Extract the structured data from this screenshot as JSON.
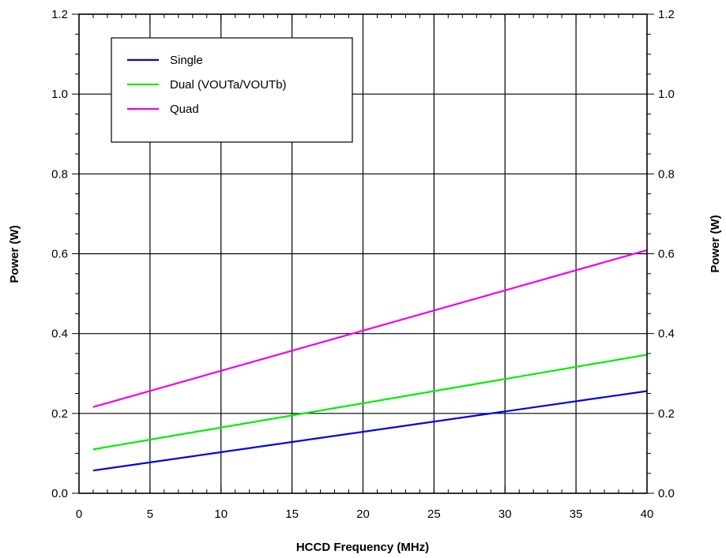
{
  "chart_data": {
    "type": "line",
    "title": "",
    "xlabel": "HCCD Frequency (MHz)",
    "ylabel": "Power (W)",
    "ylabel_right": "Power (W)",
    "xlim": [
      0,
      40
    ],
    "ylim": [
      0,
      1.2
    ],
    "xticks": [
      0,
      5,
      10,
      15,
      20,
      25,
      30,
      35,
      40
    ],
    "xtick_labels": [
      "0",
      "5",
      "10",
      "15",
      "20",
      "25",
      "30",
      "35",
      "40"
    ],
    "yticks": [
      0,
      0.2,
      0.4,
      0.6,
      0.8,
      1.0,
      1.2
    ],
    "ytick_labels": [
      "0.0",
      "0.2",
      "0.4",
      "0.6",
      "0.8",
      "1.0",
      "1.2"
    ],
    "grid": true,
    "legend_position": "top-left",
    "series": [
      {
        "name": "Single",
        "color": "#0000ee",
        "x": [
          1,
          40
        ],
        "y": [
          0.057,
          0.256
        ]
      },
      {
        "name": "Dual (VOUTa/VOUTb)",
        "color": "#00ee00",
        "x": [
          1,
          40
        ],
        "y": [
          0.11,
          0.347
        ]
      },
      {
        "name": "Quad",
        "color": "#ee00ee",
        "x": [
          1,
          40
        ],
        "y": [
          0.216,
          0.609
        ]
      }
    ]
  }
}
